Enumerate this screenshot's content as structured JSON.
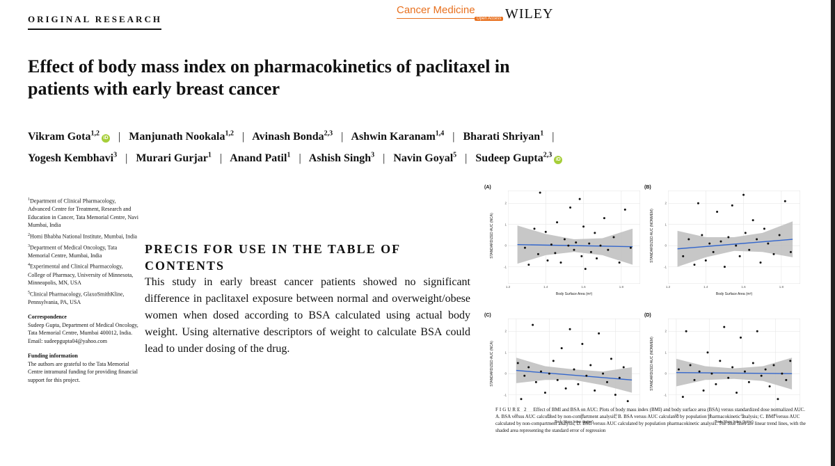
{
  "header": {
    "section": "ORIGINAL RESEARCH",
    "journal": "Cancer Medicine",
    "open_access": "Open Access",
    "publisher": "WILEY"
  },
  "article": {
    "title": "Effect of body mass index on pharmacokinetics of paclitaxel in patients with early breast cancer",
    "authors": [
      {
        "name": "Vikram Gota",
        "sup": "1,2",
        "orcid": true
      },
      {
        "name": "Manjunath Nookala",
        "sup": "1,2",
        "orcid": false
      },
      {
        "name": "Avinash Bonda",
        "sup": "2,3",
        "orcid": false
      },
      {
        "name": "Ashwin Karanam",
        "sup": "1,4",
        "orcid": false
      },
      {
        "name": "Bharati Shriyan",
        "sup": "1",
        "orcid": false
      },
      {
        "name": "Yogesh Kembhavi",
        "sup": "3",
        "orcid": false
      },
      {
        "name": "Murari Gurjar",
        "sup": "1",
        "orcid": false
      },
      {
        "name": "Anand Patil",
        "sup": "1",
        "orcid": false
      },
      {
        "name": "Ashish Singh",
        "sup": "3",
        "orcid": false
      },
      {
        "name": "Navin Goyal",
        "sup": "5",
        "orcid": false
      },
      {
        "name": "Sudeep Gupta",
        "sup": "2,3",
        "orcid": true
      }
    ],
    "orcid_glyph": "iD"
  },
  "affiliations": [
    {
      "sup": "1",
      "text": "Department of Clinical Pharmacology, Advanced Centre for Treatment, Research and Education in Cancer, Tata Memorial Centre, Navi Mumbai, India"
    },
    {
      "sup": "2",
      "text": "Homi Bhabha National Institute, Mumbai, India"
    },
    {
      "sup": "3",
      "text": "Department of Medical Oncology, Tata Memorial Centre, Mumbai, India"
    },
    {
      "sup": "4",
      "text": "Experimental and Clinical Pharmacology, College of Pharmacy, University of Minnesota, Minneapolis, MN, USA"
    },
    {
      "sup": "5",
      "text": "Clinical Pharmacology, GlaxoSmithKline, Pennsylvania, PA, USA"
    }
  ],
  "correspondence": {
    "heading": "Correspondence",
    "lines": [
      "Sudeep Gupta, Department of Medical Oncology, Tata Memorial Centre, Mumbai 400012, India.",
      "Email: sudeepgupta04@yahoo.com"
    ]
  },
  "funding": {
    "heading": "Funding information",
    "text": "The authors are grateful to the Tata Memorial Centre intramural funding for providing financial support for this project."
  },
  "precis": {
    "heading": "PRECIS FOR USE IN THE TABLE OF CONTENTS",
    "body": "This study in early breast cancer patients showed no significant difference in paclitaxel exposure between normal and overweight/obese women when dosed according to BSA calculated using actual body weight. Using alternative descriptors of weight to calculate BSA could lead to under dosing of the drug."
  },
  "figure": {
    "label": "FIGURE 2",
    "caption": "Effect of BMI and BSA on AUC: Plots of body mass index (BMI) and body surface area (BSA) versus standardized dose normalized AUC. A. BSA versus AUC calculated by non-compartment analysis; B. BSA versus AUC calculated by population pharmacokinetic analysis; C. BMI versus AUC calculated by non-compartment analysis; D. BMI versus AUC calculated by population pharmacokinetic analysis. The blue lines are linear trend lines, with the shaded area representing the standard error of regression",
    "colors": {
      "trend": "#3366cc",
      "band": "#bdbdbd",
      "points": "#111111",
      "grid": "#e6e6e6"
    }
  },
  "chart_data": [
    {
      "type": "scatter",
      "panel": "(A)",
      "xlabel": "Body Surface Area (m²)",
      "ylabel": "STANDARDIZED AUC (NCA)",
      "xlim": [
        1.2,
        1.9
      ],
      "ylim": [
        -1.8,
        2.6
      ],
      "xticks": [
        1.2,
        1.4,
        1.6,
        1.8
      ],
      "xtick_labels": [
        "1.2",
        "1.4",
        "1.6",
        "1.8"
      ],
      "yticks": [
        -1,
        0,
        1,
        2
      ],
      "ytick_labels": [
        "-1",
        "0",
        "1",
        "2"
      ],
      "trend": {
        "x": [
          1.25,
          1.86
        ],
        "y": [
          0.05,
          -0.05
        ]
      },
      "band": {
        "x": [
          1.25,
          1.4,
          1.55,
          1.7,
          1.86
        ],
        "lower": [
          -0.85,
          -0.45,
          -0.3,
          -0.45,
          -0.9
        ],
        "upper": [
          0.95,
          0.55,
          0.3,
          0.35,
          0.8
        ]
      },
      "points": [
        [
          1.29,
          -0.1
        ],
        [
          1.31,
          -0.9
        ],
        [
          1.34,
          0.8
        ],
        [
          1.36,
          -0.4
        ],
        [
          1.37,
          2.5
        ],
        [
          1.4,
          0.65
        ],
        [
          1.41,
          -0.7
        ],
        [
          1.43,
          0.05
        ],
        [
          1.45,
          -0.35
        ],
        [
          1.46,
          1.1
        ],
        [
          1.48,
          -0.8
        ],
        [
          1.5,
          0.3
        ],
        [
          1.52,
          0.0
        ],
        [
          1.53,
          1.8
        ],
        [
          1.55,
          -0.2
        ],
        [
          1.56,
          0.15
        ],
        [
          1.58,
          2.2
        ],
        [
          1.59,
          -0.5
        ],
        [
          1.6,
          0.9
        ],
        [
          1.61,
          -1.1
        ],
        [
          1.63,
          0.1
        ],
        [
          1.64,
          -0.3
        ],
        [
          1.66,
          0.6
        ],
        [
          1.67,
          -0.6
        ],
        [
          1.69,
          0.0
        ],
        [
          1.71,
          1.3
        ],
        [
          1.73,
          -0.2
        ],
        [
          1.76,
          0.4
        ],
        [
          1.79,
          -0.8
        ],
        [
          1.82,
          1.7
        ],
        [
          1.85,
          -0.1
        ]
      ]
    },
    {
      "type": "scatter",
      "panel": "(B)",
      "xlabel": "Body Surface Area (m²)",
      "ylabel": "STANDARDIZED AUC (NONMEM)",
      "xlim": [
        1.2,
        1.9
      ],
      "ylim": [
        -1.8,
        2.6
      ],
      "xticks": [
        1.2,
        1.4,
        1.6,
        1.8
      ],
      "xtick_labels": [
        "1.2",
        "1.4",
        "1.6",
        "1.8"
      ],
      "yticks": [
        -1,
        0,
        1,
        2
      ],
      "ytick_labels": [
        "-1",
        "0",
        "1",
        "2"
      ],
      "trend": {
        "x": [
          1.25,
          1.86
        ],
        "y": [
          -0.15,
          0.3
        ]
      },
      "band": {
        "x": [
          1.25,
          1.4,
          1.55,
          1.7,
          1.86
        ],
        "lower": [
          -1.0,
          -0.55,
          -0.25,
          -0.3,
          -0.55
        ],
        "upper": [
          0.7,
          0.4,
          0.4,
          0.6,
          1.15
        ]
      },
      "points": [
        [
          1.28,
          -0.5
        ],
        [
          1.31,
          0.3
        ],
        [
          1.34,
          -0.9
        ],
        [
          1.36,
          2.0
        ],
        [
          1.38,
          0.5
        ],
        [
          1.4,
          -0.7
        ],
        [
          1.42,
          0.1
        ],
        [
          1.44,
          -0.3
        ],
        [
          1.46,
          1.6
        ],
        [
          1.48,
          0.2
        ],
        [
          1.5,
          -1.0
        ],
        [
          1.52,
          0.4
        ],
        [
          1.54,
          1.9
        ],
        [
          1.56,
          0.0
        ],
        [
          1.58,
          -0.5
        ],
        [
          1.6,
          2.4
        ],
        [
          1.61,
          0.6
        ],
        [
          1.63,
          -0.2
        ],
        [
          1.65,
          1.2
        ],
        [
          1.67,
          0.3
        ],
        [
          1.69,
          -0.8
        ],
        [
          1.71,
          0.8
        ],
        [
          1.73,
          0.1
        ],
        [
          1.76,
          -0.4
        ],
        [
          1.79,
          0.5
        ],
        [
          1.82,
          2.1
        ],
        [
          1.85,
          -0.3
        ]
      ]
    },
    {
      "type": "scatter",
      "panel": "(C)",
      "xlabel": "Body Mass Index (kg/m²)",
      "ylabel": "STANDARDIZED AUC (NCA)",
      "xlim": [
        17,
        33
      ],
      "ylim": [
        -1.8,
        2.6
      ],
      "xticks": [
        18,
        22,
        26,
        30
      ],
      "xtick_labels": [
        "18",
        "22",
        "26",
        "30"
      ],
      "yticks": [
        -1,
        0,
        1,
        2
      ],
      "ytick_labels": [
        "-1",
        "0",
        "1",
        "2"
      ],
      "trend": {
        "x": [
          18,
          32
        ],
        "y": [
          0.15,
          -0.3
        ]
      },
      "band": {
        "x": [
          18,
          21.5,
          25,
          28.5,
          32
        ],
        "lower": [
          -0.45,
          -0.3,
          -0.3,
          -0.55,
          -0.9
        ],
        "upper": [
          0.75,
          0.35,
          0.2,
          0.1,
          0.3
        ]
      },
      "points": [
        [
          18.2,
          0.5
        ],
        [
          18.6,
          -1.2
        ],
        [
          19.0,
          -0.1
        ],
        [
          19.5,
          0.3
        ],
        [
          20.0,
          2.3
        ],
        [
          20.4,
          -0.4
        ],
        [
          21.0,
          0.1
        ],
        [
          21.5,
          -0.9
        ],
        [
          22.0,
          0.0
        ],
        [
          22.5,
          0.6
        ],
        [
          23.0,
          -0.3
        ],
        [
          23.5,
          1.2
        ],
        [
          24.0,
          -0.7
        ],
        [
          24.5,
          2.1
        ],
        [
          25.0,
          0.2
        ],
        [
          25.5,
          -0.5
        ],
        [
          26.0,
          1.4
        ],
        [
          26.5,
          -0.1
        ],
        [
          27.0,
          0.4
        ],
        [
          27.5,
          -0.8
        ],
        [
          28.0,
          1.9
        ],
        [
          28.5,
          0.0
        ],
        [
          29.0,
          -0.4
        ],
        [
          29.5,
          0.7
        ],
        [
          30.0,
          -1.0
        ],
        [
          30.5,
          -0.2
        ],
        [
          31.0,
          0.3
        ],
        [
          31.5,
          -1.3
        ]
      ]
    },
    {
      "type": "scatter",
      "panel": "(D)",
      "xlabel": "Body Mass Index (kg/m²)",
      "ylabel": "STANDARDIZED AUC (NONMEM)",
      "xlim": [
        17,
        33
      ],
      "ylim": [
        -1.8,
        2.6
      ],
      "xticks": [
        18,
        22,
        26,
        30
      ],
      "xtick_labels": [
        "18",
        "22",
        "26",
        "30"
      ],
      "yticks": [
        -1,
        0,
        1,
        2
      ],
      "ytick_labels": [
        "-1",
        "0",
        "1",
        "2"
      ],
      "trend": {
        "x": [
          18,
          32
        ],
        "y": [
          0.05,
          0.0
        ]
      },
      "band": {
        "x": [
          18,
          21.5,
          25,
          28.5,
          32
        ],
        "lower": [
          -0.6,
          -0.3,
          -0.25,
          -0.35,
          -0.75
        ],
        "upper": [
          0.7,
          0.35,
          0.25,
          0.35,
          0.75
        ]
      },
      "points": [
        [
          18.3,
          0.2
        ],
        [
          18.8,
          -1.1
        ],
        [
          19.2,
          2.0
        ],
        [
          19.7,
          0.4
        ],
        [
          20.2,
          -0.3
        ],
        [
          20.8,
          0.1
        ],
        [
          21.3,
          -0.8
        ],
        [
          21.8,
          1.0
        ],
        [
          22.3,
          0.0
        ],
        [
          22.8,
          -0.5
        ],
        [
          23.3,
          0.6
        ],
        [
          23.8,
          2.2
        ],
        [
          24.3,
          -0.2
        ],
        [
          24.8,
          0.3
        ],
        [
          25.3,
          -0.9
        ],
        [
          25.8,
          1.7
        ],
        [
          26.3,
          0.1
        ],
        [
          26.8,
          -0.4
        ],
        [
          27.3,
          0.5
        ],
        [
          27.8,
          2.0
        ],
        [
          28.3,
          -0.1
        ],
        [
          28.8,
          0.2
        ],
        [
          29.3,
          -0.6
        ],
        [
          29.8,
          0.4
        ],
        [
          30.3,
          -1.2
        ],
        [
          30.8,
          0.0
        ],
        [
          31.3,
          -0.3
        ],
        [
          31.8,
          0.6
        ]
      ]
    }
  ]
}
